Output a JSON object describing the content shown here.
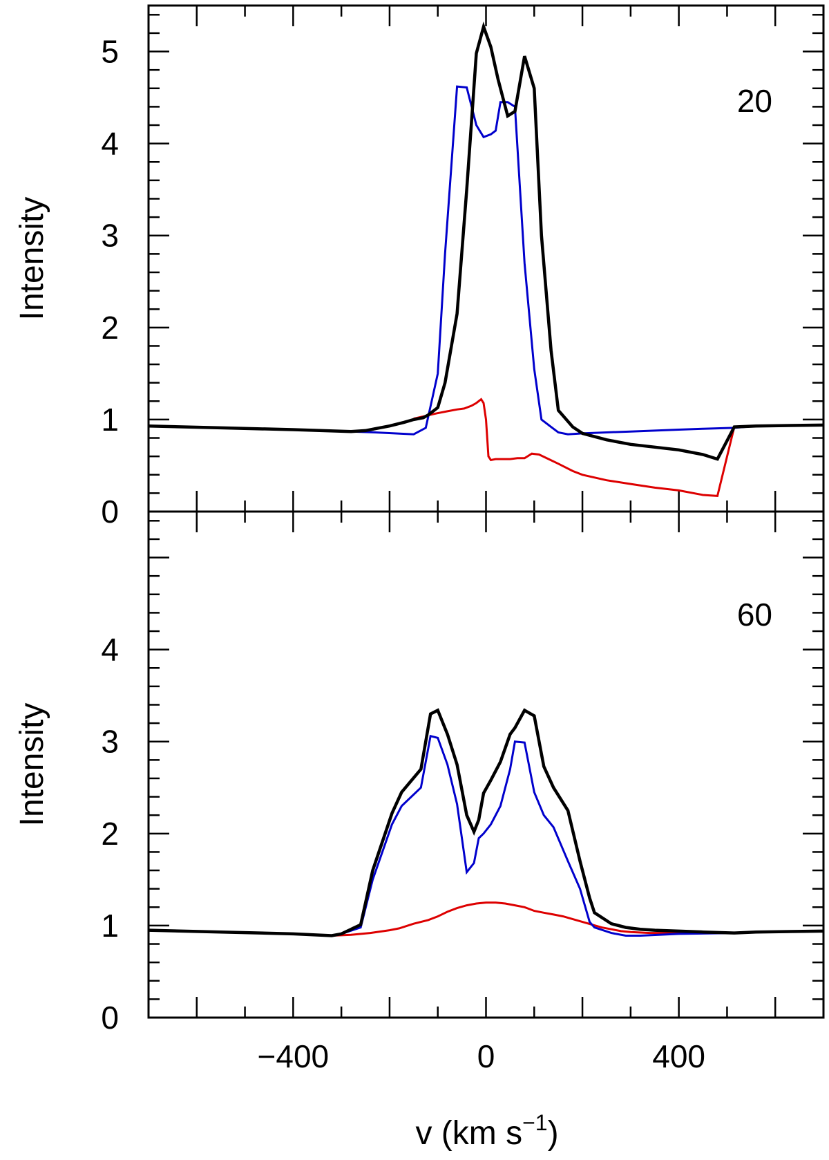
{
  "chart_data": [
    {
      "type": "line",
      "panel_label": "20",
      "xlim": [
        -700,
        700
      ],
      "ylim": [
        0,
        5.5
      ],
      "xticks_major": [
        -600,
        -400,
        -200,
        0,
        200,
        400,
        600
      ],
      "xtick_labels": [],
      "yticks_major": [
        0,
        1,
        2,
        3,
        4,
        5
      ],
      "ytick_labels": [
        "0",
        "1",
        "2",
        "3",
        "4",
        "5"
      ],
      "ylabel": "Intensity",
      "xlabel": "",
      "series": [
        {
          "name": "total",
          "color": "#000000",
          "x": [
            -700,
            -550,
            -400,
            -280,
            -250,
            -230,
            -200,
            -170,
            -150,
            -130,
            -120,
            -100,
            -85,
            -60,
            -40,
            -20,
            -5,
            10,
            25,
            45,
            60,
            80,
            100,
            115,
            135,
            150,
            180,
            200,
            250,
            300,
            350,
            400,
            450,
            480,
            515,
            560,
            700
          ],
          "y": [
            0.93,
            0.91,
            0.89,
            0.87,
            0.88,
            0.9,
            0.93,
            0.97,
            1.0,
            1.02,
            1.05,
            1.13,
            1.4,
            2.15,
            3.5,
            4.98,
            5.27,
            5.05,
            4.7,
            4.3,
            4.35,
            4.95,
            4.6,
            3.0,
            1.75,
            1.1,
            0.92,
            0.85,
            0.78,
            0.73,
            0.7,
            0.67,
            0.62,
            0.57,
            0.92,
            0.93,
            0.94
          ]
        },
        {
          "name": "component-blue",
          "color": "#0000cc",
          "x": [
            -700,
            -550,
            -400,
            -280,
            -230,
            -150,
            -125,
            -100,
            -85,
            -60,
            -40,
            -20,
            -5,
            10,
            20,
            30,
            45,
            60,
            80,
            100,
            115,
            135,
            150,
            170,
            200,
            250,
            300,
            350,
            400,
            450,
            515,
            560,
            700
          ],
          "y": [
            0.93,
            0.91,
            0.89,
            0.87,
            0.86,
            0.84,
            0.91,
            1.5,
            2.8,
            4.62,
            4.61,
            4.2,
            4.07,
            4.1,
            4.14,
            4.45,
            4.45,
            4.4,
            2.7,
            1.55,
            1.0,
            0.92,
            0.86,
            0.84,
            0.85,
            0.86,
            0.87,
            0.88,
            0.89,
            0.9,
            0.91,
            0.93,
            0.94
          ]
        },
        {
          "name": "component-red",
          "color": "#dd0000",
          "x": [
            -150,
            -125,
            -100,
            -80,
            -60,
            -45,
            -30,
            -20,
            -10,
            -5,
            0,
            5,
            10,
            20,
            35,
            50,
            65,
            80,
            95,
            110,
            130,
            150,
            180,
            200,
            250,
            300,
            350,
            400,
            450,
            480,
            515
          ],
          "y": [
            1.01,
            1.04,
            1.07,
            1.09,
            1.11,
            1.12,
            1.15,
            1.18,
            1.22,
            1.18,
            1.0,
            0.6,
            0.56,
            0.57,
            0.57,
            0.57,
            0.58,
            0.58,
            0.63,
            0.62,
            0.57,
            0.52,
            0.44,
            0.4,
            0.34,
            0.3,
            0.26,
            0.23,
            0.18,
            0.17,
            0.92
          ]
        }
      ]
    },
    {
      "type": "line",
      "panel_label": "60",
      "xlim": [
        -700,
        700
      ],
      "ylim": [
        0,
        5.5
      ],
      "xticks_major": [
        -600,
        -400,
        -200,
        0,
        200,
        400,
        600
      ],
      "xtick_labels": [
        "−400",
        "0",
        "400"
      ],
      "yticks_major": [
        0,
        1,
        2,
        3,
        4,
        5
      ],
      "ytick_labels": [
        "0",
        "1",
        "2",
        "3",
        "4"
      ],
      "ylabel": "Intensity",
      "xlabel": "v (km s",
      "xlabel_sup": "−1",
      "xlabel_close": ")",
      "series": [
        {
          "name": "total",
          "color": "#000000",
          "x": [
            -700,
            -550,
            -400,
            -320,
            -300,
            -260,
            -235,
            -195,
            -175,
            -135,
            -115,
            -100,
            -80,
            -60,
            -40,
            -25,
            -15,
            -5,
            10,
            30,
            50,
            60,
            80,
            100,
            120,
            140,
            170,
            195,
            215,
            225,
            260,
            290,
            320,
            350,
            400,
            450,
            515,
            560,
            700
          ],
          "y": [
            0.95,
            0.93,
            0.91,
            0.89,
            0.91,
            1.01,
            1.6,
            2.22,
            2.45,
            2.7,
            3.3,
            3.34,
            3.08,
            2.75,
            2.2,
            2.02,
            2.15,
            2.44,
            2.58,
            2.78,
            3.08,
            3.15,
            3.34,
            3.28,
            2.73,
            2.5,
            2.25,
            1.7,
            1.3,
            1.14,
            1.02,
            0.98,
            0.96,
            0.95,
            0.94,
            0.93,
            0.92,
            0.93,
            0.94
          ]
        },
        {
          "name": "component-blue",
          "color": "#0000cc",
          "x": [
            -320,
            -300,
            -260,
            -235,
            -195,
            -175,
            -135,
            -115,
            -100,
            -80,
            -60,
            -40,
            -25,
            -15,
            -5,
            10,
            30,
            50,
            60,
            80,
            100,
            120,
            140,
            170,
            195,
            215,
            225,
            260,
            290,
            320,
            400,
            515
          ],
          "y": [
            0.89,
            0.91,
            0.98,
            1.5,
            2.1,
            2.3,
            2.5,
            3.06,
            3.04,
            2.75,
            2.32,
            1.58,
            1.68,
            1.95,
            2.0,
            2.1,
            2.3,
            2.7,
            3.0,
            2.99,
            2.45,
            2.2,
            2.07,
            1.7,
            1.4,
            1.04,
            0.98,
            0.92,
            0.89,
            0.89,
            0.91,
            0.92
          ]
        },
        {
          "name": "component-red",
          "color": "#dd0000",
          "x": [
            -320,
            -280,
            -240,
            -200,
            -180,
            -150,
            -120,
            -100,
            -80,
            -60,
            -40,
            -20,
            0,
            20,
            40,
            60,
            80,
            100,
            120,
            140,
            160,
            180,
            200,
            220,
            240,
            260,
            280,
            300,
            340,
            400,
            460,
            515
          ],
          "y": [
            0.89,
            0.9,
            0.92,
            0.95,
            0.97,
            1.02,
            1.06,
            1.1,
            1.15,
            1.19,
            1.22,
            1.24,
            1.25,
            1.25,
            1.24,
            1.22,
            1.2,
            1.16,
            1.14,
            1.12,
            1.1,
            1.07,
            1.04,
            1.01,
            0.98,
            0.96,
            0.94,
            0.93,
            0.92,
            0.92,
            0.92,
            0.92
          ]
        }
      ]
    }
  ]
}
